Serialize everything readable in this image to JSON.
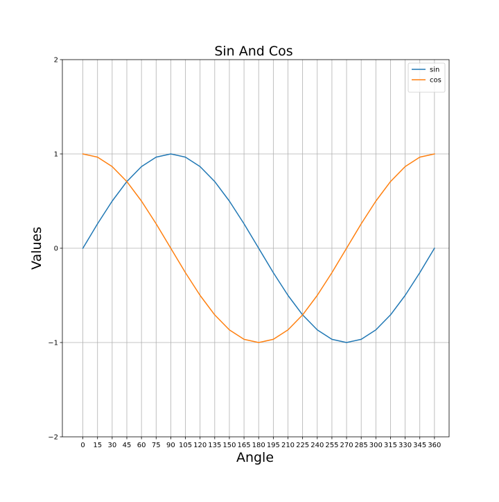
{
  "chart_data": {
    "type": "line",
    "title": "Sin And Cos",
    "xlabel": "Angle",
    "ylabel": "Values",
    "x": [
      0,
      15,
      30,
      45,
      60,
      75,
      90,
      105,
      120,
      135,
      150,
      165,
      180,
      195,
      210,
      225,
      240,
      255,
      270,
      285,
      300,
      315,
      330,
      345,
      360
    ],
    "x_ticks": [
      0,
      15,
      30,
      45,
      60,
      75,
      90,
      105,
      120,
      135,
      150,
      165,
      180,
      195,
      210,
      225,
      240,
      255,
      270,
      285,
      300,
      315,
      330,
      345,
      360
    ],
    "x_tick_labels": [
      "0",
      "15",
      "30",
      "45",
      "60",
      "75",
      "90",
      "105",
      "120",
      "135",
      "150",
      "165",
      "180",
      "195",
      "210",
      "225",
      "240",
      "255",
      "270",
      "285",
      "300",
      "315",
      "330",
      "345",
      "360"
    ],
    "y_ticks": [
      -2,
      -1,
      0,
      1,
      2
    ],
    "y_tick_labels": [
      "−2",
      "−1",
      "0",
      "1",
      "2"
    ],
    "xlim": [
      -21,
      375
    ],
    "ylim": [
      -2,
      2
    ],
    "grid": true,
    "legend_position": "top-right",
    "series": [
      {
        "name": "sin",
        "color": "#1f77b4",
        "values": [
          0,
          0.259,
          0.5,
          0.707,
          0.866,
          0.966,
          1,
          0.966,
          0.866,
          0.707,
          0.5,
          0.259,
          0,
          -0.259,
          -0.5,
          -0.707,
          -0.866,
          -0.966,
          -1,
          -0.966,
          -0.866,
          -0.707,
          -0.5,
          -0.259,
          0
        ]
      },
      {
        "name": "cos",
        "color": "#ff7f0e",
        "values": [
          1,
          0.966,
          0.866,
          0.707,
          0.5,
          0.259,
          0,
          -0.259,
          -0.5,
          -0.707,
          -0.866,
          -0.966,
          -1,
          -0.966,
          -0.866,
          -0.707,
          -0.5,
          -0.259,
          0,
          0.259,
          0.5,
          0.707,
          0.866,
          0.966,
          1
        ]
      }
    ]
  }
}
